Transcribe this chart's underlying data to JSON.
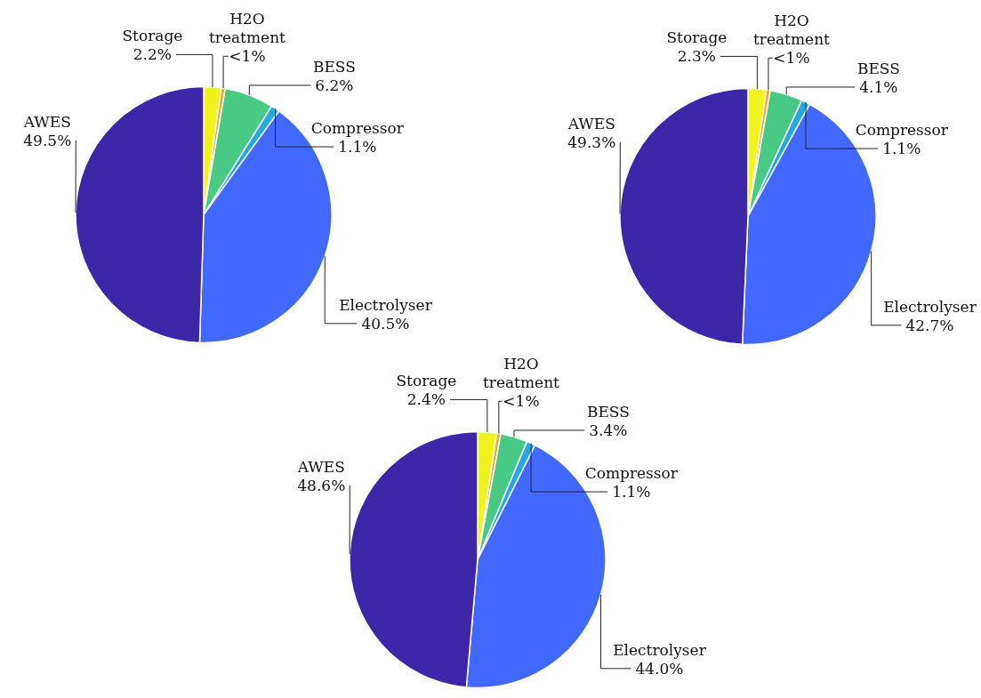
{
  "chart_data": [
    {
      "type": "pie",
      "categories": [
        "Storage",
        "H2O treatment",
        "BESS",
        "Compressor",
        "Electrolyser",
        "AWES"
      ],
      "values": [
        2.2,
        0.5,
        6.2,
        1.1,
        40.5,
        49.5
      ],
      "colors": [
        "#f2f21e",
        "#f0a830",
        "#48c984",
        "#28a8e0",
        "#4168ff",
        "#3e26a8"
      ],
      "value_labels": [
        "2.2%",
        "<1%",
        "6.2%",
        "1.1%",
        "40.5%",
        "49.5%"
      ]
    },
    {
      "type": "pie",
      "categories": [
        "Storage",
        "H2O treatment",
        "BESS",
        "Compressor",
        "Electrolyser",
        "AWES"
      ],
      "values": [
        2.3,
        0.5,
        4.1,
        1.1,
        42.7,
        49.3
      ],
      "colors": [
        "#f2f21e",
        "#f0a830",
        "#48c984",
        "#28a8e0",
        "#4168ff",
        "#3e26a8"
      ],
      "value_labels": [
        "2.3%",
        "<1%",
        "4.1%",
        "1.1%",
        "42.7%",
        "49.3%"
      ]
    },
    {
      "type": "pie",
      "categories": [
        "Storage",
        "H2O treatment",
        "BESS",
        "Compressor",
        "Electrolyser",
        "AWES"
      ],
      "values": [
        2.4,
        0.5,
        3.4,
        1.1,
        44.0,
        48.6
      ],
      "colors": [
        "#f2f21e",
        "#f0a830",
        "#48c984",
        "#28a8e0",
        "#4168ff",
        "#3e26a8"
      ],
      "value_labels": [
        "2.4%",
        "<1%",
        "3.4%",
        "1.1%",
        "44.0%",
        "48.6%"
      ]
    }
  ]
}
